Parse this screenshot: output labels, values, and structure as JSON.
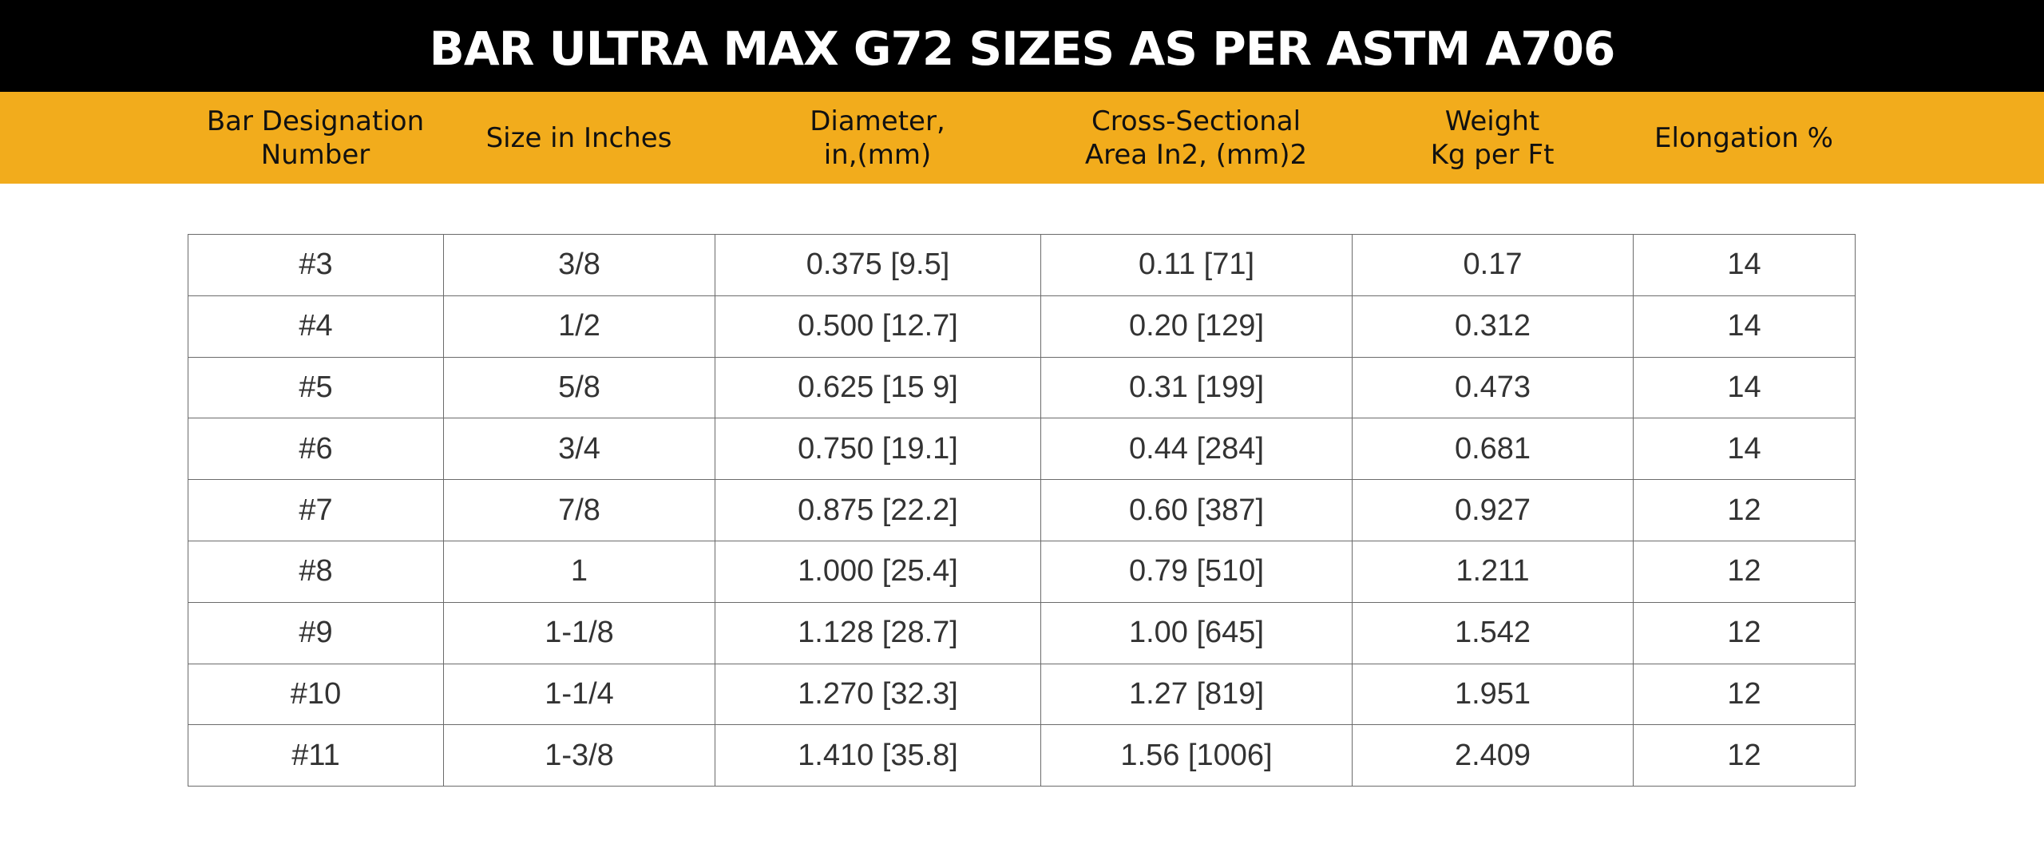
{
  "title": "BAR ULTRA MAX G72 SIZES AS PER ASTM A706",
  "colors": {
    "title_bg": "#000000",
    "title_text": "#ffffff",
    "header_bg": "#f2ac1c",
    "grid_line": "#6b6b6b",
    "cell_text": "#333333"
  },
  "columns": [
    "Bar Designation\nNumber",
    "Size in Inches",
    "Diameter,\nin,(mm)",
    "Cross-Sectional\nArea In2, (mm)2",
    "Weight\nKg per Ft",
    "Elongation %"
  ],
  "rows": [
    [
      "#3",
      "3/8",
      "0.375 [9.5]",
      "0.11 [71]",
      "0.17",
      "14"
    ],
    [
      "#4",
      "1/2",
      "0.500 [12.7]",
      "0.20 [129]",
      "0.312",
      "14"
    ],
    [
      "#5",
      "5/8",
      "0.625 [15 9]",
      "0.31 [199]",
      "0.473",
      "14"
    ],
    [
      "#6",
      "3/4",
      "0.750 [19.1]",
      "0.44 [284]",
      "0.681",
      "14"
    ],
    [
      "#7",
      "7/8",
      "0.875 [22.2]",
      "0.60 [387]",
      "0.927",
      "12"
    ],
    [
      "#8",
      "1",
      "1.000 [25.4]",
      "0.79 [510]",
      "1.211",
      "12"
    ],
    [
      "#9",
      "1-1/8",
      "1.128 [28.7]",
      "1.00 [645]",
      "1.542",
      "12"
    ],
    [
      "#10",
      "1-1/4",
      "1.270 [32.3]",
      "1.27 [819]",
      "1.951",
      "12"
    ],
    [
      "#11",
      "1-3/8",
      "1.410 [35.8]",
      "1.56 [1006]",
      "2.409",
      "12"
    ]
  ]
}
